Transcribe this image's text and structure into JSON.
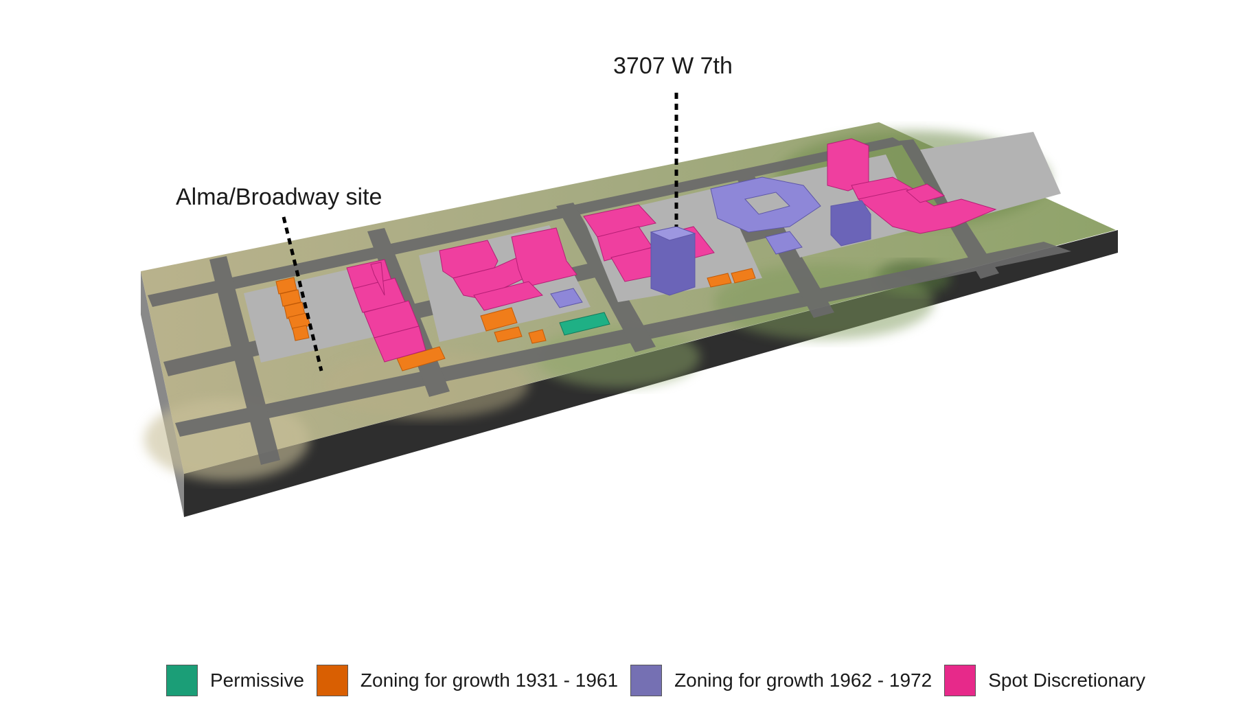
{
  "callouts": {
    "alma": "Alma/Broadway site",
    "w7th": "3707 W 7th"
  },
  "colors": {
    "permissive": "#1b9e77",
    "growth_1931_1961": "#d95f02",
    "growth_1962_1972": "#7570b3",
    "spot_discretionary": "#e7298a"
  },
  "legend": {
    "items": [
      {
        "label": "Permissive",
        "color": "#1b9e77"
      },
      {
        "label": "Zoning for growth 1931 - 1961",
        "color": "#d95f02"
      },
      {
        "label": "Zoning for growth 1962 - 1972",
        "color": "#7570b3"
      },
      {
        "label": "Spot Discretionary",
        "color": "#e7298a"
      }
    ]
  }
}
